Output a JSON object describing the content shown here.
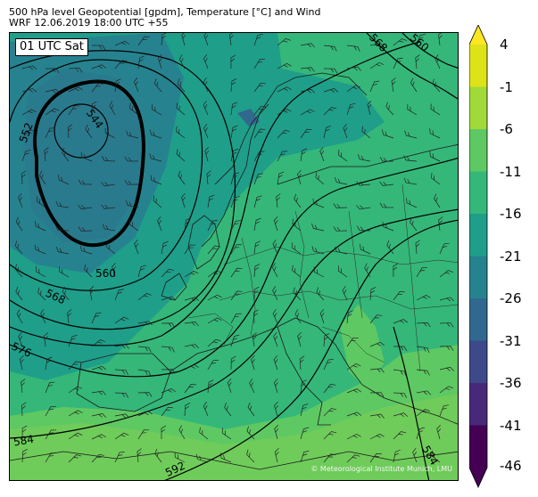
{
  "header": {
    "line1": "500 hPa level Geopotential [gpdm], Temperature [°C] and Wind",
    "line2": "WRF 12.06.2019 18:00 UTC +55"
  },
  "map": {
    "time_label": "01 UTC Sat",
    "credit": "© Meteorological Institute Munich, LMU",
    "contour_labels": [
      "544",
      "552",
      "560",
      "568",
      "576",
      "584",
      "592",
      "568",
      "560",
      "584"
    ]
  },
  "colorbar": {
    "ticks": [
      "4",
      "-1",
      "-6",
      "-11",
      "-16",
      "-21",
      "-26",
      "-31",
      "-36",
      "-41",
      "-46"
    ],
    "colors": {
      "above_4": "#fde725",
      "-1_4": "#dde318",
      "-6_-1": "#a0da39",
      "-11_-6": "#5ec962",
      "-16_-11": "#35b779",
      "-21_-16": "#1f9e89",
      "-26_-21": "#26828e",
      "-31_-26": "#31688e",
      "-36_-31": "#3e4989",
      "-41_-36": "#482878",
      "-46_-41": "#440154",
      "below_-46": "#440154"
    }
  }
}
